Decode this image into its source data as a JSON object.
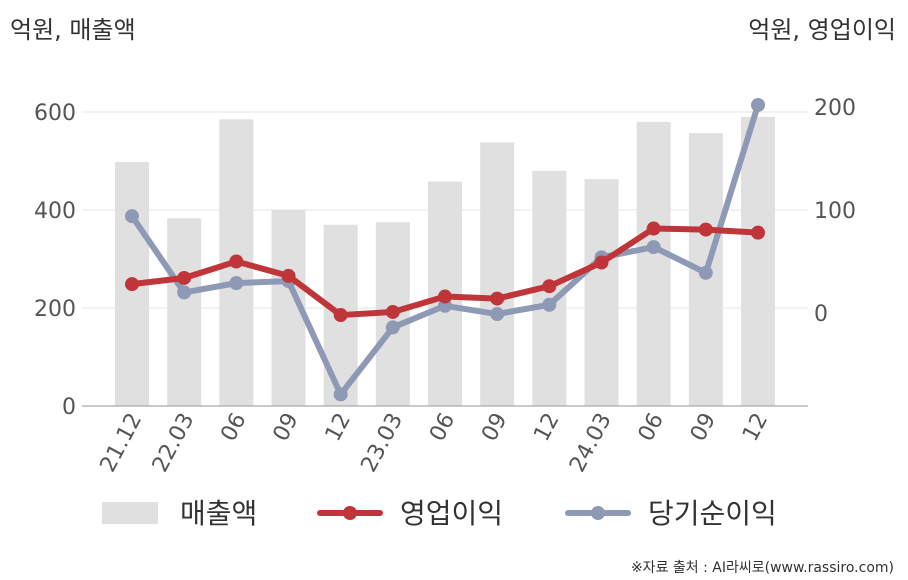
{
  "chart_data": {
    "type": "bar",
    "left_axis_unit": "억원, 매출액",
    "right_axis_unit": "억원, 영업이익",
    "categories": [
      "21.12",
      "22.03",
      "06",
      "09",
      "12",
      "23.03",
      "06",
      "09",
      "12",
      "24.03",
      "06",
      "09",
      "12"
    ],
    "ylim_left": [
      0,
      600
    ],
    "yticks_left": [
      "0",
      "200",
      "400",
      "600"
    ],
    "ylim_right": [
      -90,
      200
    ],
    "yticks_right": [
      "0",
      "100",
      "200"
    ],
    "grid": true,
    "legend_position": "bottom",
    "series": [
      {
        "name": "매출액",
        "type": "bar",
        "axis": "left",
        "color": "#e0e0e0",
        "values": [
          498,
          383,
          585,
          400,
          370,
          375,
          458,
          538,
          480,
          463,
          580,
          557,
          590
        ]
      },
      {
        "name": "영업이익",
        "type": "line",
        "axis": "right",
        "color": "#c0353a",
        "values": [
          28,
          34,
          50,
          36,
          -2,
          1,
          16,
          14,
          26,
          49,
          82,
          81,
          78
        ]
      },
      {
        "name": "당기순이익",
        "type": "line",
        "axis": "right",
        "color": "#8e9ab5",
        "values": [
          94,
          20,
          29,
          31,
          -79,
          -14,
          7,
          -1,
          8,
          54,
          64,
          39,
          202
        ]
      }
    ],
    "source": "※자료 출처 : AI라씨로(www.rassiro.com)"
  }
}
